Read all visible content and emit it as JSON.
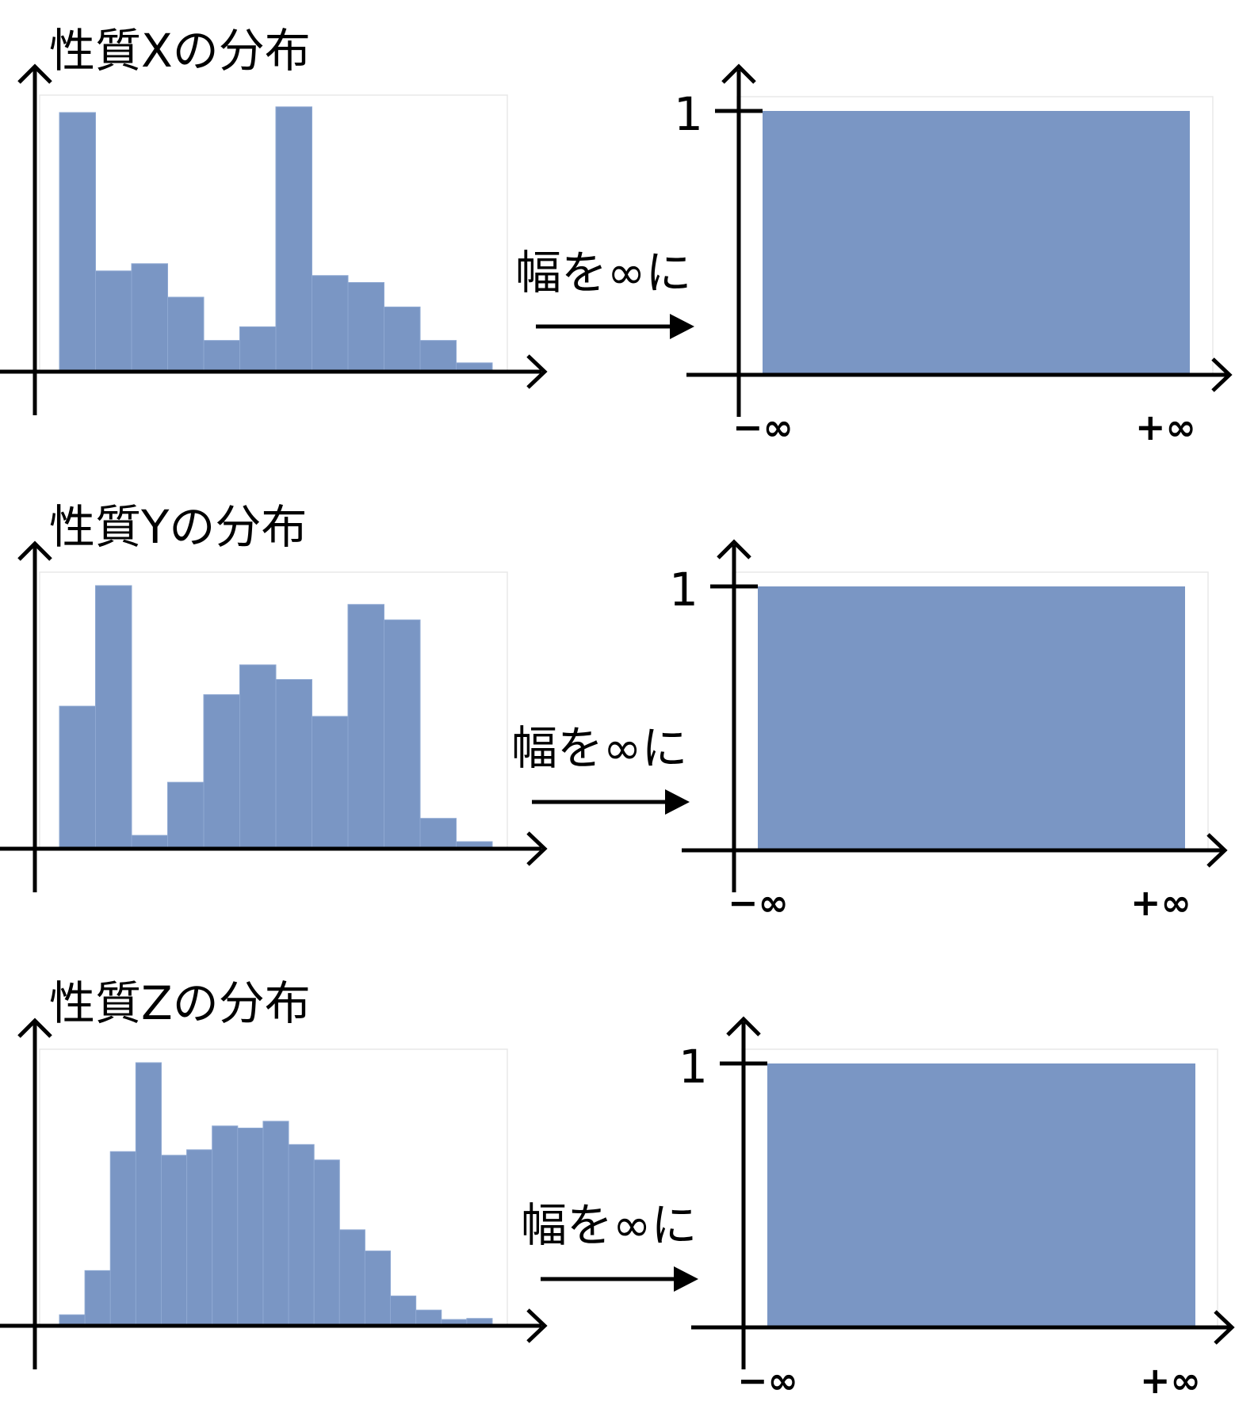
{
  "colors": {
    "bar_fill": "#7a96c4",
    "bar_edge": "#8ea8d2",
    "axis": "#000000",
    "frame": "#e8e8e8"
  },
  "rows": [
    {
      "title": "性質Xの分布",
      "arrow_label": "幅を∞に",
      "uniform_y_tick": "1",
      "x_min_label": "−∞",
      "x_max_label": "+∞"
    },
    {
      "title": "性質Yの分布",
      "arrow_label": "幅を∞に",
      "uniform_y_tick": "1",
      "x_min_label": "−∞",
      "x_max_label": "+∞"
    },
    {
      "title": "性質Zの分布",
      "arrow_label": "幅を∞に",
      "uniform_y_tick": "1",
      "x_min_label": "−∞",
      "x_max_label": "+∞"
    }
  ],
  "chart_data": [
    {
      "type": "bar",
      "title": "性質Xの分布",
      "values": [
        1.0,
        0.385,
        0.413,
        0.283,
        0.115,
        0.168,
        1.022,
        0.367,
        0.34,
        0.245,
        0.115,
        0.028
      ],
      "ylim": [
        0,
        1.07
      ],
      "grid": false
    },
    {
      "type": "area",
      "values": [
        1
      ],
      "yticks": [
        "1"
      ],
      "xticks": [
        "−∞",
        "+∞"
      ],
      "grid": false
    },
    {
      "type": "bar",
      "title": "性質Yの分布",
      "values": [
        0.539,
        1.0,
        0.045,
        0.248,
        0.583,
        0.697,
        0.641,
        0.5,
        0.928,
        0.869,
        0.11,
        0.021
      ],
      "ylim": [
        0,
        1.05
      ],
      "grid": false
    },
    {
      "type": "area",
      "values": [
        1
      ],
      "yticks": [
        "1"
      ],
      "xticks": [
        "−∞",
        "+∞"
      ],
      "grid": false
    },
    {
      "type": "bar",
      "title": "性質Zの分布",
      "values": [
        0.036,
        0.205,
        0.66,
        1.0,
        0.646,
        0.667,
        0.758,
        0.75,
        0.776,
        0.687,
        0.628,
        0.361,
        0.28,
        0.108,
        0.054,
        0.018,
        0.022
      ],
      "ylim": [
        0,
        1.06
      ],
      "grid": false
    },
    {
      "type": "area",
      "values": [
        1
      ],
      "yticks": [
        "1"
      ],
      "xticks": [
        "−∞",
        "+∞"
      ],
      "grid": false
    }
  ]
}
